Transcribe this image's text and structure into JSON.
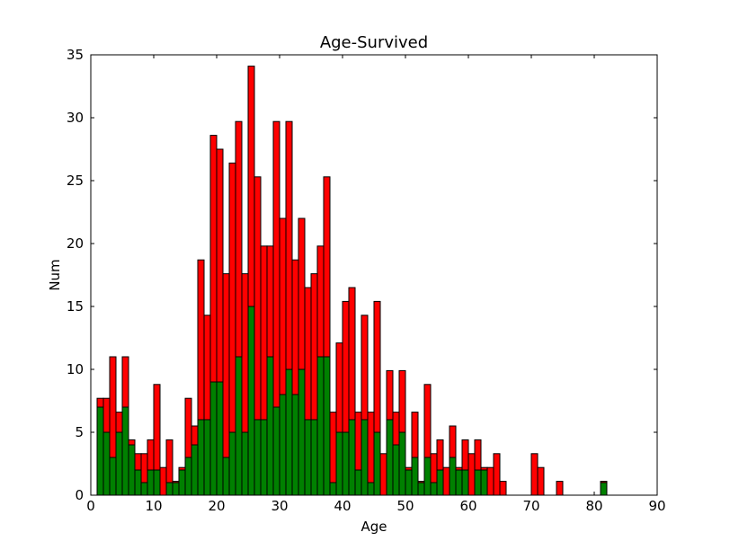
{
  "chart_data": {
    "type": "histogram",
    "title": "Age-Survived",
    "x_label": "Age",
    "y_label": "Num",
    "stacked": true,
    "bins": [
      1,
      2,
      3,
      4,
      5,
      6,
      7,
      8,
      9,
      10,
      11,
      12,
      13,
      14,
      15,
      16,
      17,
      18,
      19,
      20,
      21,
      22,
      23,
      24,
      25,
      26,
      27,
      28,
      29,
      30,
      31,
      32,
      33,
      34,
      35,
      36,
      37,
      38,
      39,
      40,
      41,
      42,
      43,
      44,
      45,
      46,
      47,
      48,
      49,
      50,
      51,
      52,
      53,
      54,
      55,
      56,
      57,
      58,
      59,
      60,
      61,
      62,
      63,
      64,
      65,
      66,
      67,
      68,
      69,
      70,
      71,
      72,
      73,
      74,
      75,
      76,
      77,
      78,
      79,
      80,
      81,
      82
    ],
    "series": [
      {
        "color": "#008000",
        "values": [
          7,
          5,
          3,
          5,
          7,
          4,
          2,
          1,
          2,
          2,
          0,
          1,
          1,
          2,
          3,
          4,
          6,
          6,
          9,
          9,
          3,
          5,
          11,
          5,
          15,
          6,
          6,
          11,
          7,
          8,
          10,
          8,
          10,
          6,
          6,
          11,
          11,
          1,
          5,
          5,
          6,
          2,
          6,
          1,
          5,
          0,
          6,
          4,
          5,
          2,
          3,
          1,
          3,
          1,
          2,
          0,
          3,
          2,
          2,
          0,
          2,
          2,
          0,
          0,
          0,
          0,
          0,
          0,
          0,
          0,
          0,
          0,
          0,
          0,
          0,
          0,
          0,
          0,
          0,
          0,
          1
        ]
      },
      {
        "color": "#ff0000",
        "values": [
          0.7,
          2.7,
          8,
          1.6,
          4,
          0.4,
          1.3,
          2.3,
          2.4,
          6.8,
          2.2,
          3.4,
          0.1,
          0.2,
          4.7,
          1.5,
          12.7,
          8.3,
          19.6,
          18.5,
          14.6,
          21.4,
          18.7,
          12.6,
          19.1,
          19.3,
          13.8,
          8.8,
          22.7,
          14,
          19.7,
          10.7,
          12,
          10.5,
          11.6,
          8.8,
          14.3,
          5.6,
          7.1,
          10.4,
          10.5,
          4.6,
          8.3,
          5.6,
          10.4,
          3.3,
          3.9,
          2.6,
          4.9,
          0.2,
          3.6,
          0.1,
          5.8,
          2.3,
          2.4,
          2.2,
          2.5,
          0.2,
          2.4,
          3.3,
          2.4,
          0.2,
          2.2,
          3.3,
          1.1,
          0,
          0,
          0,
          0,
          3.3,
          2.2,
          0,
          0,
          1.1,
          0,
          0,
          0,
          0,
          0,
          0,
          0.1
        ]
      }
    ],
    "xlim": [
      0,
      90
    ],
    "xticks": [
      0,
      10,
      20,
      30,
      40,
      50,
      60,
      70,
      80,
      90
    ],
    "ylim": [
      0,
      35
    ],
    "yticks": [
      0,
      5,
      10,
      15,
      20,
      25,
      30,
      35
    ]
  }
}
